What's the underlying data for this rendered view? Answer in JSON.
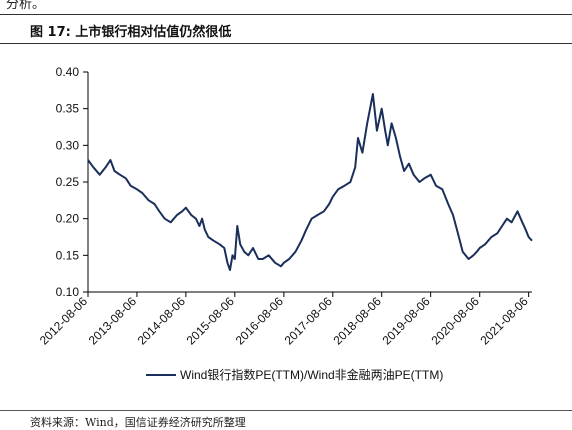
{
  "page": {
    "top_fragment": "分析。",
    "figure_title": "图 17:  上市银行相对估值仍然很低",
    "source": "资料来源：Wind，国信证券经济研究所整理"
  },
  "colors": {
    "series": "#1b2f5b",
    "axis": "#000000"
  },
  "chart_data": {
    "type": "line",
    "title": "",
    "xlabel": "",
    "ylabel": "",
    "ylim": [
      0.1,
      0.4
    ],
    "yticks": [
      "0.10",
      "0.15",
      "0.20",
      "0.25",
      "0.30",
      "0.35",
      "0.40"
    ],
    "xticks": [
      "2012-08-06",
      "2013-08-06",
      "2014-08-06",
      "2015-08-06",
      "2016-08-06",
      "2017-08-06",
      "2018-08-06",
      "2019-08-06",
      "2020-08-06",
      "2021-08-06"
    ],
    "xlim": [
      "2012-08-06",
      "2021-08-31"
    ],
    "legend_position": "bottom",
    "grid": false,
    "series": [
      {
        "name": "Wind银行指数PE(TTM)/Wind非金融两油PE(TTM)",
        "color": "#1b2f5b",
        "x": [
          "2012-08-06",
          "2012-09-15",
          "2012-11-01",
          "2012-12-15",
          "2013-01-20",
          "2013-02-20",
          "2013-04-01",
          "2013-05-15",
          "2013-06-20",
          "2013-08-06",
          "2013-09-15",
          "2013-11-01",
          "2013-12-15",
          "2014-01-20",
          "2014-03-01",
          "2014-04-15",
          "2014-06-01",
          "2014-07-10",
          "2014-08-06",
          "2014-09-15",
          "2014-10-20",
          "2014-11-15",
          "2014-12-05",
          "2014-12-25",
          "2015-01-20",
          "2015-03-01",
          "2015-04-15",
          "2015-05-20",
          "2015-06-12",
          "2015-07-01",
          "2015-07-20",
          "2015-08-06",
          "2015-08-25",
          "2015-09-15",
          "2015-10-15",
          "2015-11-15",
          "2015-12-20",
          "2016-01-28",
          "2016-03-01",
          "2016-04-15",
          "2016-06-01",
          "2016-07-15",
          "2016-08-06",
          "2016-09-15",
          "2016-11-01",
          "2016-12-15",
          "2017-01-20",
          "2017-03-01",
          "2017-04-15",
          "2017-06-01",
          "2017-07-10",
          "2017-08-06",
          "2017-09-15",
          "2017-11-01",
          "2017-12-15",
          "2018-01-20",
          "2018-02-10",
          "2018-03-15",
          "2018-04-20",
          "2018-06-01",
          "2018-07-01",
          "2018-08-06",
          "2018-09-01",
          "2018-09-20",
          "2018-10-19",
          "2018-11-20",
          "2018-12-20",
          "2019-01-20",
          "2019-02-25",
          "2019-04-01",
          "2019-05-15",
          "2019-06-20",
          "2019-08-06",
          "2019-09-15",
          "2019-11-01",
          "2019-12-15",
          "2020-01-20",
          "2020-02-25",
          "2020-04-01",
          "2020-05-15",
          "2020-06-20",
          "2020-07-15",
          "2020-08-06",
          "2020-09-15",
          "2020-11-01",
          "2020-12-15",
          "2021-01-20",
          "2021-02-25",
          "2021-04-01",
          "2021-05-15",
          "2021-06-20",
          "2021-07-15",
          "2021-08-06",
          "2021-08-31"
        ],
        "values": [
          0.28,
          0.27,
          0.26,
          0.27,
          0.28,
          0.265,
          0.26,
          0.255,
          0.245,
          0.24,
          0.235,
          0.225,
          0.22,
          0.21,
          0.2,
          0.195,
          0.205,
          0.21,
          0.215,
          0.205,
          0.2,
          0.19,
          0.2,
          0.185,
          0.175,
          0.17,
          0.165,
          0.16,
          0.14,
          0.13,
          0.15,
          0.145,
          0.19,
          0.165,
          0.155,
          0.15,
          0.16,
          0.145,
          0.145,
          0.15,
          0.14,
          0.135,
          0.14,
          0.145,
          0.155,
          0.17,
          0.185,
          0.2,
          0.205,
          0.21,
          0.22,
          0.23,
          0.24,
          0.245,
          0.25,
          0.27,
          0.31,
          0.29,
          0.33,
          0.37,
          0.32,
          0.35,
          0.32,
          0.3,
          0.33,
          0.31,
          0.285,
          0.265,
          0.275,
          0.26,
          0.25,
          0.255,
          0.26,
          0.245,
          0.24,
          0.22,
          0.205,
          0.18,
          0.155,
          0.145,
          0.15,
          0.155,
          0.16,
          0.165,
          0.175,
          0.18,
          0.19,
          0.2,
          0.195,
          0.21,
          0.195,
          0.185,
          0.175,
          0.17
        ]
      }
    ]
  }
}
